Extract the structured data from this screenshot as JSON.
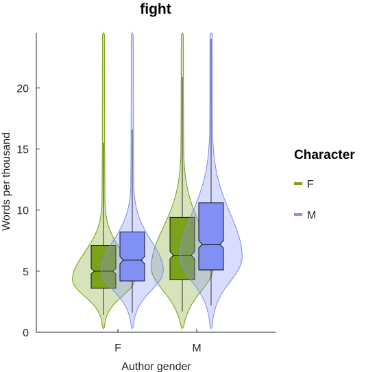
{
  "chart_data": {
    "type": "violin",
    "title": "fight",
    "xlabel": "Author gender",
    "ylabel": "Words per thousand",
    "categories": [
      "F",
      "M"
    ],
    "ylim": [
      0,
      24.5
    ],
    "yticks": [
      0,
      5,
      10,
      15,
      20
    ],
    "legend": {
      "title": "Character",
      "position": "right"
    },
    "series": [
      {
        "name": "F",
        "color": "#7ba21a",
        "stats": [
          {
            "category": "F",
            "min": 1.4,
            "q1": 3.6,
            "median": 5.0,
            "q3": 7.1,
            "max": 15.5,
            "notch": [
              4.8,
              5.2
            ],
            "violin_min": 0.3,
            "violin_max": 24.5
          },
          {
            "category": "M",
            "min": 1.7,
            "q1": 4.3,
            "median": 6.3,
            "q3": 9.4,
            "max": 20.9,
            "notch": [
              6.0,
              6.6
            ],
            "violin_min": 0.3,
            "violin_max": 24.5
          }
        ]
      },
      {
        "name": "M",
        "color": "#8090f5",
        "stats": [
          {
            "category": "F",
            "min": 1.6,
            "q1": 4.2,
            "median": 5.9,
            "q3": 8.2,
            "max": 16.6,
            "notch": [
              5.6,
              6.2
            ],
            "violin_min": 0.3,
            "violin_max": 24.5
          },
          {
            "category": "M",
            "min": 2.2,
            "q1": 5.1,
            "median": 7.2,
            "q3": 10.6,
            "max": 24.0,
            "notch": [
              6.9,
              7.5
            ],
            "violin_min": 0.3,
            "violin_max": 24.5
          }
        ]
      }
    ],
    "grid": false
  }
}
